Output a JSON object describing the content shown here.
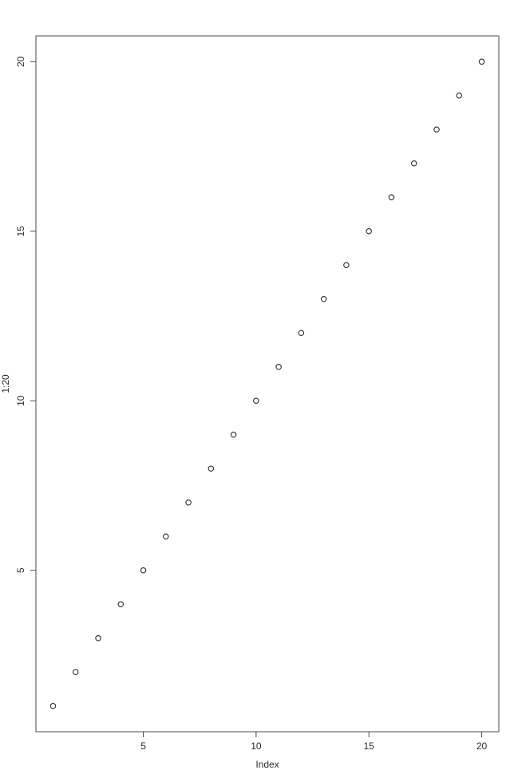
{
  "chart_data": {
    "type": "scatter",
    "title": "",
    "xlabel": "Index",
    "ylabel": "1:20",
    "x": [
      1,
      2,
      3,
      4,
      5,
      6,
      7,
      8,
      9,
      10,
      11,
      12,
      13,
      14,
      15,
      16,
      17,
      18,
      19,
      20
    ],
    "y": [
      1,
      2,
      3,
      4,
      5,
      6,
      7,
      8,
      9,
      10,
      11,
      12,
      13,
      14,
      15,
      16,
      17,
      18,
      19,
      20
    ],
    "x_ticks": [
      5,
      10,
      15,
      20
    ],
    "y_ticks": [
      5,
      10,
      15,
      20
    ],
    "xlim": [
      0.24,
      20.76
    ],
    "ylim": [
      0.24,
      20.76
    ],
    "grid": false,
    "legend_position": "none",
    "marker": "open-circle",
    "colors": {
      "points": "#2b2b2b",
      "axis": "#4a4a4a",
      "text": "#2b2b2b",
      "background": "#ffffff"
    }
  }
}
